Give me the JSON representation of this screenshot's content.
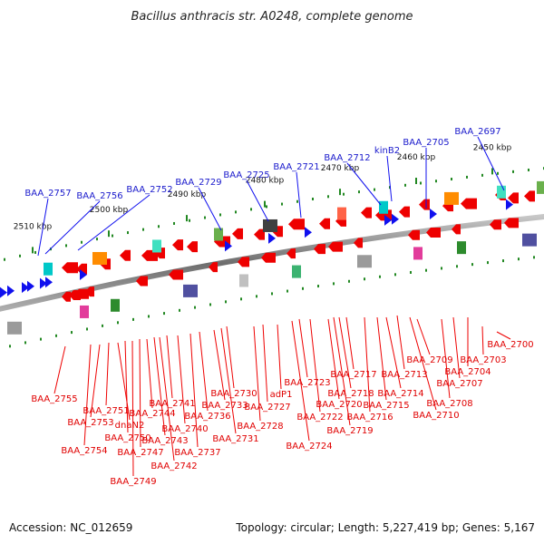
{
  "title": "Bacillus anthracis str. A0248, complete genome",
  "footer": {
    "accession": "Accession: NC_012659",
    "summary": "Topology: circular; Length: 5,227,419 bp; Genes: 5,167"
  },
  "ticks": [
    "2450 kbp",
    "2460 kbp",
    "2470 kbp",
    "2480 kbp",
    "2490 kbp",
    "2500 kbp",
    "2510 kbp"
  ],
  "colors": {
    "forward": "#1010ee",
    "reverse": "#ee0000",
    "backbone": "#888888",
    "tick": "#228822"
  },
  "top_labels": [
    "BAA_2697",
    "BAA_2705",
    "kinB2",
    "BAA_2712",
    "BAA_2721",
    "BAA_2725",
    "BAA_2729",
    "BAA_2752",
    "BAA_2756",
    "BAA_2757"
  ],
  "bottom_labels": [
    "BAA_2700",
    "BAA_2703",
    "BAA_2704",
    "BAA_2707",
    "BAA_2708",
    "BAA_2709",
    "BAA_2710",
    "BAA_2713",
    "BAA_2714",
    "BAA_2715",
    "BAA_2716",
    "BAA_2717",
    "BAA_2718",
    "BAA_2719",
    "BAA_2720",
    "BAA_2722",
    "BAA_2723",
    "BAA_2724",
    "adP1",
    "BAA_2727",
    "BAA_2728",
    "BAA_2730",
    "BAA_2731",
    "BAA_2733",
    "BAA_2736",
    "BAA_2737",
    "BAA_2740",
    "BAA_2741",
    "BAA_2742",
    "BAA_2743",
    "BAA_2744",
    "BAA_2747",
    "BAA_2749",
    "BAA_2750",
    "dnaN2",
    "BAA_2751",
    "BAA_2753",
    "BAA_2754",
    "BAA_2755"
  ]
}
